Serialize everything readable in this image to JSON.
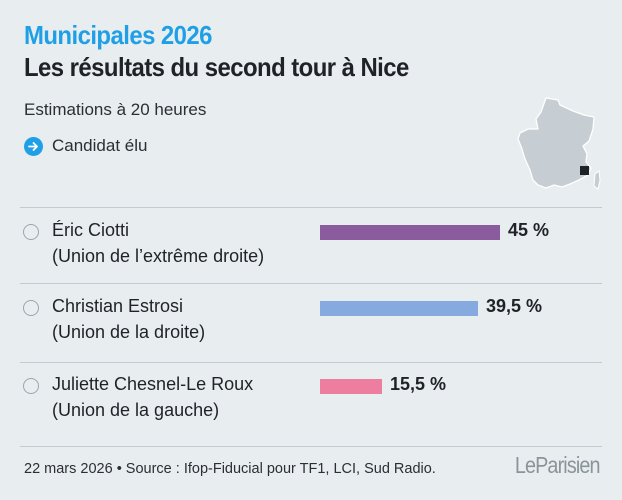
{
  "header": {
    "kicker": "Municipales 2026",
    "title": "Les résultats du second tour à Nice",
    "subtitle": "Estimations à 20 heures"
  },
  "legend": {
    "label": "Candidat élu",
    "icon": "arrow-right-icon",
    "color": "#1fa0e6"
  },
  "map": {
    "icon": "france-map-icon",
    "marker": "nice-location-marker"
  },
  "chart_data": {
    "type": "bar",
    "orientation": "horizontal",
    "title": "Les résultats du second tour à Nice",
    "subtitle": "Estimations à 20 heures",
    "unit": "%",
    "xlim": [
      0,
      100
    ],
    "categories": [
      "Éric Ciotti",
      "Christian Estrosi",
      "Juliette Chesnel-Le Roux"
    ],
    "values": [
      45,
      39.5,
      15.5
    ],
    "candidates": [
      {
        "name": "Éric Ciotti",
        "party": "(Union de l’extrême droite)",
        "value": 45,
        "label": "45 %",
        "color": "#8b5c9d",
        "elected": false
      },
      {
        "name": "Christian Estrosi",
        "party": "(Union de la droite)",
        "value": 39.5,
        "label": "39,5 %",
        "color": "#86a9e0",
        "elected": false
      },
      {
        "name": "Juliette Chesnel-Le Roux",
        "party": "(Union de la gauche)",
        "value": 15.5,
        "label": "15,5 %",
        "color": "#ee7ea0",
        "elected": false
      }
    ]
  },
  "footer": {
    "source": "22 mars 2026 • Source : Ifop-Fiducial pour TF1, LCI, Sud Radio.",
    "brand": "LeParisien"
  }
}
